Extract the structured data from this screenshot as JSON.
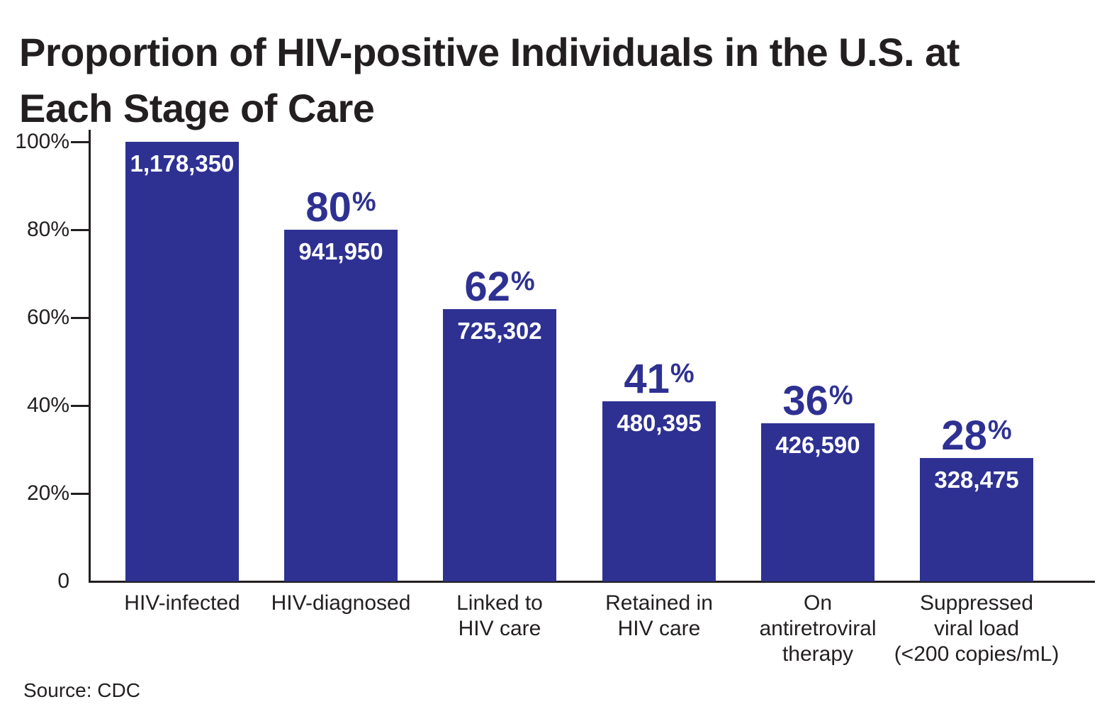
{
  "title": {
    "line1": "Proportion of HIV-positive Individuals in the U.S. at",
    "line2": "Each Stage of Care"
  },
  "source": "Source: CDC",
  "colors": {
    "bar": "#2E3192",
    "text": "#231F20",
    "count_label": "#FFFFFF"
  },
  "chart_data": {
    "type": "bar",
    "title": "Proportion of HIV-positive Individuals in the U.S. at Each Stage of Care",
    "xlabel": "",
    "ylabel": "",
    "ylim": [
      0,
      100
    ],
    "grid": false,
    "legend": false,
    "source": "Source: CDC",
    "y_ticks": [
      {
        "label": "100%",
        "value": 100
      },
      {
        "label": "80%",
        "value": 80
      },
      {
        "label": "60%",
        "value": 60
      },
      {
        "label": "40%",
        "value": 40
      },
      {
        "label": "20%",
        "value": 20
      },
      {
        "label": "0",
        "value": 0
      }
    ],
    "categories": [
      "HIV-infected",
      "HIV-diagnosed",
      "Linked to HIV care",
      "Retained in HIV care",
      "On antiretroviral therapy",
      "Suppressed viral load (<200 copies/mL)"
    ],
    "bars": [
      {
        "category_lines": [
          "HIV-infected"
        ],
        "percent": 100,
        "percent_label": null,
        "count": 1178350,
        "count_label": "1,178,350"
      },
      {
        "category_lines": [
          "HIV-diagnosed"
        ],
        "percent": 80,
        "percent_label": "80%",
        "count": 941950,
        "count_label": "941,950"
      },
      {
        "category_lines": [
          "Linked to",
          "HIV care"
        ],
        "percent": 62,
        "percent_label": "62%",
        "count": 725302,
        "count_label": "725,302"
      },
      {
        "category_lines": [
          "Retained in",
          "HIV care"
        ],
        "percent": 41,
        "percent_label": "41%",
        "count": 480395,
        "count_label": "480,395"
      },
      {
        "category_lines": [
          "On",
          "antiretroviral",
          "therapy"
        ],
        "percent": 36,
        "percent_label": "36%",
        "count": 426590,
        "count_label": "426,590"
      },
      {
        "category_lines": [
          "Suppressed",
          "viral load",
          "(<200 copies/mL)"
        ],
        "percent": 28,
        "percent_label": "28%",
        "count": 328475,
        "count_label": "328,475"
      }
    ]
  }
}
